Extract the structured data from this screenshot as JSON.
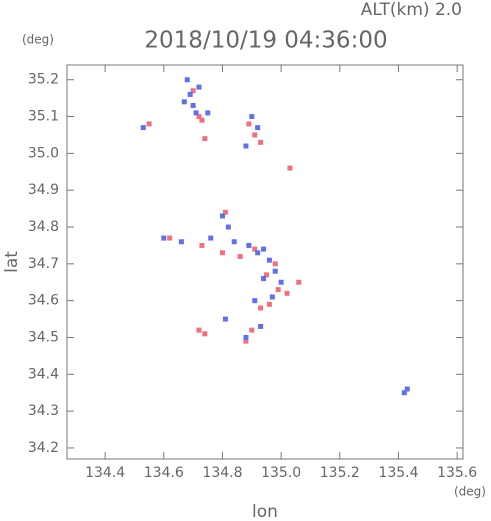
{
  "chart_data": {
    "type": "scatter",
    "title": "2018/10/19 04:36:00",
    "subtitle": "ALT(km) 2.0",
    "x_label": "lon",
    "y_label": "lat",
    "x_unit": "(deg)",
    "y_unit": "(deg)",
    "xlim": [
      134.27,
      135.62
    ],
    "ylim": [
      34.17,
      35.24
    ],
    "xticks": [
      134.4,
      134.6,
      134.8,
      {
        "value": 135,
        "label": "135.0"
      },
      135.2,
      135.4,
      135.6
    ],
    "yticks": [
      34.2,
      34.3,
      34.4,
      34.5,
      34.6,
      34.7,
      34.8,
      34.9,
      {
        "value": 35,
        "label": "35.0"
      },
      35.1,
      35.2
    ],
    "series": [
      {
        "color": "#f07080",
        "x": [
          134.55,
          134.72,
          134.73,
          134.74,
          134.7,
          134.91,
          134.89,
          134.93,
          135.03,
          134.81,
          134.62,
          134.73,
          134.8,
          134.86,
          134.91,
          134.98,
          135.06,
          134.95,
          134.99,
          135.02,
          134.93,
          134.9,
          134.72,
          134.74,
          134.88,
          134.96
        ],
        "y": [
          35.08,
          35.1,
          35.09,
          35.04,
          35.17,
          35.05,
          35.08,
          35.03,
          34.96,
          34.84,
          34.77,
          34.75,
          34.73,
          34.72,
          34.74,
          34.7,
          34.65,
          34.67,
          34.63,
          34.62,
          34.58,
          34.52,
          34.52,
          34.51,
          34.49,
          34.59
        ]
      },
      {
        "color": "#6070e8",
        "x": [
          134.68,
          134.69,
          134.7,
          134.71,
          134.67,
          134.72,
          134.75,
          134.53,
          134.9,
          134.92,
          134.88,
          134.8,
          134.82,
          134.6,
          134.66,
          134.76,
          134.84,
          134.89,
          134.92,
          134.94,
          134.96,
          134.98,
          134.94,
          134.97,
          135.0,
          134.91,
          134.88,
          134.93,
          134.81,
          135.43,
          135.42
        ],
        "y": [
          35.2,
          35.16,
          35.13,
          35.11,
          35.14,
          35.18,
          35.11,
          35.07,
          35.1,
          35.07,
          35.02,
          34.83,
          34.8,
          34.77,
          34.76,
          34.77,
          34.76,
          34.75,
          34.73,
          34.74,
          34.71,
          34.68,
          34.66,
          34.61,
          34.65,
          34.6,
          34.5,
          34.53,
          34.55,
          34.36,
          34.35
        ]
      }
    ]
  }
}
